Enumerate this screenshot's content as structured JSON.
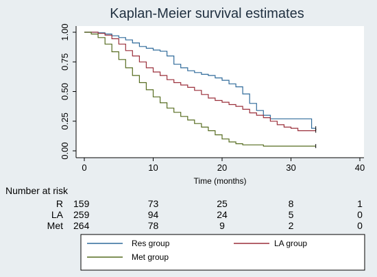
{
  "chart_data": {
    "type": "line",
    "title": "Kaplan-Meier survival estimates",
    "xlabel": "Time (months)",
    "ylabel": "",
    "xlim": [
      0,
      40
    ],
    "ylim": [
      0,
      1
    ],
    "x_ticks": [
      "0",
      "10",
      "20",
      "30",
      "40"
    ],
    "y_ticks": [
      "0.00",
      "0.25",
      "0.50",
      "0.75",
      "1.00"
    ],
    "x_tick_values": [
      0,
      10,
      20,
      30,
      40
    ],
    "y_tick_values": [
      0,
      0.25,
      0.5,
      0.75,
      1.0
    ],
    "grid": false,
    "series": [
      {
        "name": "Res group",
        "color": "#2f6a9a",
        "points": [
          [
            0,
            1.0
          ],
          [
            1,
            1.0
          ],
          [
            2,
            0.995
          ],
          [
            3,
            0.985
          ],
          [
            4,
            0.97
          ],
          [
            5,
            0.955
          ],
          [
            6,
            0.935
          ],
          [
            7,
            0.91
          ],
          [
            8,
            0.88
          ],
          [
            9,
            0.865
          ],
          [
            10,
            0.85
          ],
          [
            11,
            0.84
          ],
          [
            12,
            0.8
          ],
          [
            13,
            0.73
          ],
          [
            14,
            0.7
          ],
          [
            15,
            0.675
          ],
          [
            16,
            0.66
          ],
          [
            17,
            0.645
          ],
          [
            18,
            0.635
          ],
          [
            19,
            0.615
          ],
          [
            20,
            0.595
          ],
          [
            21,
            0.565
          ],
          [
            22,
            0.54
          ],
          [
            23,
            0.48
          ],
          [
            24,
            0.4
          ],
          [
            25,
            0.34
          ],
          [
            26,
            0.3
          ],
          [
            27,
            0.27
          ],
          [
            28,
            0.27
          ],
          [
            29,
            0.27
          ],
          [
            30,
            0.27
          ],
          [
            31,
            0.27
          ],
          [
            32,
            0.27
          ],
          [
            33,
            0.19
          ],
          [
            33.6,
            0.19
          ]
        ]
      },
      {
        "name": "LA group",
        "color": "#9a2f3a",
        "points": [
          [
            0,
            1.0
          ],
          [
            1,
            1.0
          ],
          [
            2,
            0.99
          ],
          [
            3,
            0.975
          ],
          [
            4,
            0.945
          ],
          [
            5,
            0.9
          ],
          [
            6,
            0.845
          ],
          [
            7,
            0.8
          ],
          [
            8,
            0.75
          ],
          [
            9,
            0.7
          ],
          [
            10,
            0.665
          ],
          [
            11,
            0.635
          ],
          [
            12,
            0.6
          ],
          [
            13,
            0.575
          ],
          [
            14,
            0.555
          ],
          [
            15,
            0.535
          ],
          [
            16,
            0.51
          ],
          [
            17,
            0.475
          ],
          [
            18,
            0.445
          ],
          [
            19,
            0.425
          ],
          [
            20,
            0.41
          ],
          [
            21,
            0.39
          ],
          [
            22,
            0.375
          ],
          [
            23,
            0.35
          ],
          [
            24,
            0.32
          ],
          [
            25,
            0.3
          ],
          [
            26,
            0.28
          ],
          [
            27,
            0.25
          ],
          [
            28,
            0.22
          ],
          [
            29,
            0.2
          ],
          [
            30,
            0.19
          ],
          [
            31,
            0.17
          ],
          [
            32,
            0.17
          ],
          [
            33,
            0.17
          ],
          [
            33.6,
            0.17
          ]
        ]
      },
      {
        "name": "Met group",
        "color": "#556b1f",
        "points": [
          [
            0,
            1.0
          ],
          [
            1,
            0.985
          ],
          [
            2,
            0.955
          ],
          [
            3,
            0.9
          ],
          [
            4,
            0.835
          ],
          [
            5,
            0.77
          ],
          [
            6,
            0.7
          ],
          [
            7,
            0.635
          ],
          [
            8,
            0.575
          ],
          [
            9,
            0.515
          ],
          [
            10,
            0.455
          ],
          [
            11,
            0.405
          ],
          [
            12,
            0.36
          ],
          [
            13,
            0.325
          ],
          [
            14,
            0.29
          ],
          [
            15,
            0.26
          ],
          [
            16,
            0.23
          ],
          [
            17,
            0.2
          ],
          [
            18,
            0.17
          ],
          [
            19,
            0.135
          ],
          [
            20,
            0.1
          ],
          [
            21,
            0.075
          ],
          [
            22,
            0.06
          ],
          [
            23,
            0.05
          ],
          [
            24,
            0.05
          ],
          [
            25,
            0.05
          ],
          [
            26,
            0.04
          ],
          [
            27,
            0.04
          ],
          [
            28,
            0.04
          ],
          [
            30,
            0.04
          ],
          [
            32,
            0.04
          ],
          [
            33.6,
            0.04
          ]
        ]
      }
    ],
    "risk_table": {
      "header": "Number at risk",
      "rows": [
        {
          "label": "R",
          "values": [
            "159",
            "73",
            "25",
            "8",
            "1"
          ]
        },
        {
          "label": "LA",
          "values": [
            "259",
            "94",
            "24",
            "5",
            "0"
          ]
        },
        {
          "label": "Met",
          "values": [
            "264",
            "78",
            "9",
            "2",
            "0"
          ]
        }
      ]
    },
    "legend": {
      "placement": "bottom",
      "entries": [
        {
          "name": "Res group",
          "color": "#2f6a9a"
        },
        {
          "name": "LA group",
          "color": "#9a2f3a"
        },
        {
          "name": "Met group",
          "color": "#556b1f"
        }
      ]
    }
  }
}
